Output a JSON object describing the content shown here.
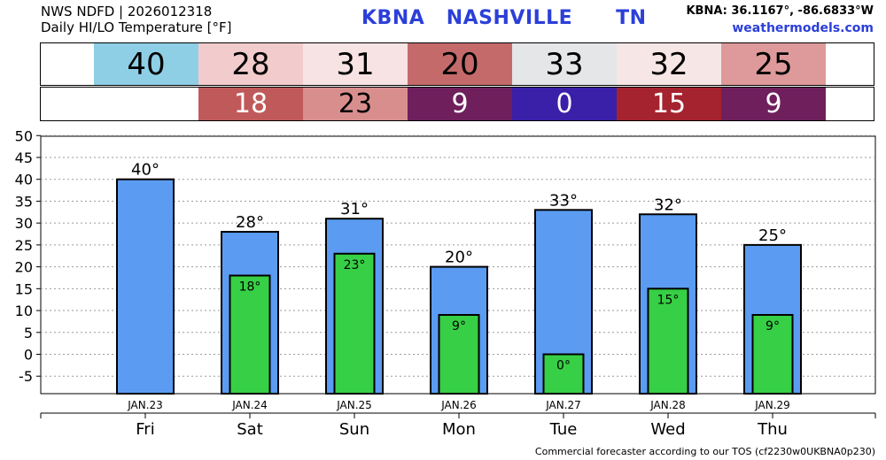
{
  "header": {
    "line1": "NWS NDFD | 2026012318",
    "line2": "Daily HI/LO Temperature [°F]",
    "title": "KBNA   NASHVILLE      TN",
    "coords": "KBNA: 36.1167°, -86.6833°W",
    "site": "weathermodels.com"
  },
  "strips": {
    "hi": [
      {
        "text": "40",
        "bg": "#8ecfe6",
        "fg": "#000000"
      },
      {
        "text": "28",
        "bg": "#f2cccc",
        "fg": "#000000"
      },
      {
        "text": "31",
        "bg": "#f7e3e3",
        "fg": "#000000"
      },
      {
        "text": "20",
        "bg": "#c56a6a",
        "fg": "#000000"
      },
      {
        "text": "33",
        "bg": "#e4e6e7",
        "fg": "#000000"
      },
      {
        "text": "32",
        "bg": "#f7e6e6",
        "fg": "#000000"
      },
      {
        "text": "25",
        "bg": "#de9a9a",
        "fg": "#000000"
      }
    ],
    "lo": [
      {
        "text": "",
        "bg": "#ffffff",
        "fg": "#000000"
      },
      {
        "text": "18",
        "bg": "#c05a5a",
        "fg": "#ffffff"
      },
      {
        "text": "23",
        "bg": "#d98e8e",
        "fg": "#000000"
      },
      {
        "text": "9",
        "bg": "#6e1f5c",
        "fg": "#ffffff"
      },
      {
        "text": "0",
        "bg": "#3a1fa8",
        "fg": "#ffffff"
      },
      {
        "text": "15",
        "bg": "#a5232e",
        "fg": "#ffffff"
      },
      {
        "text": "9",
        "bg": "#6e1f5c",
        "fg": "#ffffff"
      }
    ]
  },
  "chart_data": {
    "type": "bar",
    "categories": [
      "Fri",
      "Sat",
      "Sun",
      "Mon",
      "Tue",
      "Wed",
      "Thu"
    ],
    "dates": [
      "JAN.23",
      "JAN.24",
      "JAN.25",
      "JAN.26",
      "JAN.27",
      "JAN.28",
      "JAN.29"
    ],
    "series": [
      {
        "values": [
          40,
          28,
          31,
          20,
          33,
          32,
          25
        ],
        "color": "#5b9cf2",
        "labels": [
          "40°",
          "28°",
          "31°",
          "20°",
          "33°",
          "32°",
          "25°"
        ]
      },
      {
        "values": [
          null,
          18,
          23,
          9,
          0,
          15,
          9
        ],
        "color": "#37cf45",
        "labels": [
          "",
          "18°",
          "23°",
          "9°",
          "0°",
          "15°",
          "9°"
        ]
      }
    ],
    "ylim": [
      -9,
      50
    ],
    "yticks": [
      -5,
      0,
      5,
      10,
      15,
      20,
      25,
      30,
      35,
      40,
      45,
      50
    ],
    "grid": true
  },
  "footer": "Commercial forecaster according to our TOS (cf2230w0UKBNA0p230)"
}
